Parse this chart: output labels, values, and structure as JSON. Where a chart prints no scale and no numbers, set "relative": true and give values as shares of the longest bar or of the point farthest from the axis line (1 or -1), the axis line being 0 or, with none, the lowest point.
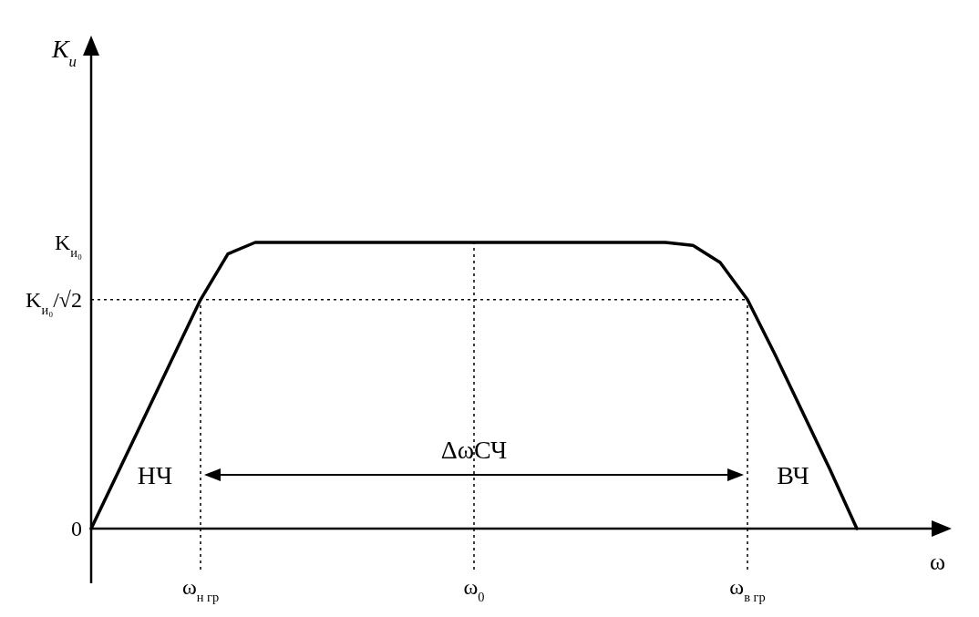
{
  "chart_data": {
    "type": "line",
    "relative": true,
    "xlabel": "ω",
    "categories": [
      null,
      null,
      null,
      null,
      "ω$_{н гр}$",
      null,
      null,
      null,
      null,
      null,
      null,
      null,
      null,
      null,
      "ω$_{0}$",
      null,
      null,
      null,
      null,
      null,
      null,
      null,
      null,
      null,
      "ω$_{в гр}$",
      null,
      null,
      null,
      null,
      null,
      null,
      null
    ],
    "series": [
      {
        "color": "#000000",
        "values": [
          0,
          0.2,
          0.4,
          0.6,
          0.8,
          0.96,
          1,
          1,
          1,
          1,
          1,
          1,
          1,
          1,
          1,
          1,
          1,
          1,
          1,
          1,
          1,
          1,
          0.99,
          0.93,
          0.8,
          0.61,
          0.41,
          0.21,
          0,
          null,
          null,
          null
        ]
      }
    ],
    "ref_lines": [
      {
        "axis": "x",
        "value": "ω$_{н гр}$",
        "line_style": "dotted",
        "color": "#000000"
      },
      {
        "axis": "x",
        "value": "ω$_{0}$",
        "line_style": "dotted",
        "color": "#000000"
      },
      {
        "axis": "x",
        "value": "ω$_{в гр}$",
        "line_style": "dotted",
        "color": "#000000"
      },
      {
        "axis": "y",
        "value": 0.8,
        "label": "K$_{и₀}$/√2",
        "line_style": "dotted",
        "color": "#000000"
      }
    ],
    "annotations": [
      "0",
      "K$_{и₀}$",
      "НЧ",
      "ΔωСЧ",
      "ВЧ",
      "K$_{и}$"
    ],
    "grid": false,
    "marker": "none",
    "line_style": "solid"
  }
}
